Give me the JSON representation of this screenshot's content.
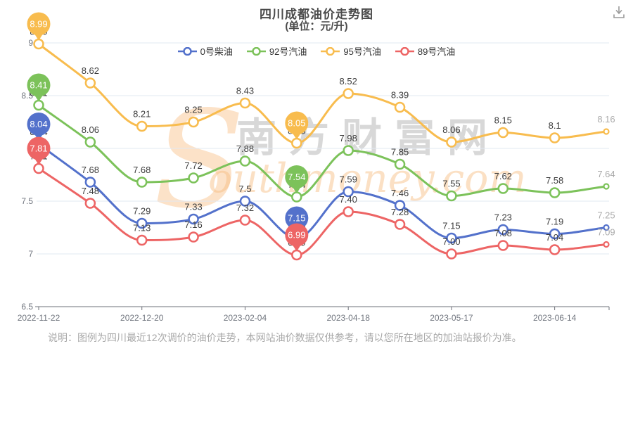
{
  "page": {
    "note": "说明：图例为四川最近12次调价的油价走势，本网站油价数据仅供参考，请以您所在地区的加油站报价为准。",
    "watermark": {
      "en_initial": "S",
      "cn": "南方财富网",
      "en_rest": "outhmoney.com"
    },
    "toolbox": {
      "save_icon": "download-icon"
    }
  },
  "chart_data": {
    "type": "line",
    "title": "四川成都油价走势图",
    "subtitle": "(单位：元/升)",
    "unit": "元/升",
    "legend_position": "top",
    "grid": true,
    "smooth": true,
    "n_points": 12,
    "x_tick_labels": [
      "2022-11-22",
      "2022-12-20",
      "2023-02-04",
      "2023-04-18",
      "2023-05-17",
      "2023-06-14"
    ],
    "x_tick_indices": [
      0,
      2,
      4,
      6,
      8,
      10
    ],
    "ylim": [
      6.5,
      9
    ],
    "y_ticks": [
      "9",
      "8.5",
      "8",
      "7.5",
      "7",
      "6.5"
    ],
    "series": [
      {
        "name": "0号柴油",
        "color": "#5371CB",
        "values": [
          8.04,
          7.68,
          7.29,
          7.33,
          7.5,
          7.15,
          7.59,
          7.46,
          7.15,
          7.23,
          7.19,
          7.25
        ],
        "labels": [
          "8.04",
          "7.68",
          "7.29",
          "7.33",
          "7.5",
          "7.15",
          "7.59",
          "7.46",
          "7.15",
          "7.23",
          "7.19",
          "7.25"
        ],
        "markpoints": [
          {
            "i": 0,
            "text": "8.04"
          },
          {
            "i": 5,
            "text": "7.15"
          }
        ]
      },
      {
        "name": "92号汽油",
        "color": "#7CC25A",
        "values": [
          8.41,
          8.06,
          7.68,
          7.72,
          7.88,
          7.54,
          7.98,
          7.85,
          7.55,
          7.62,
          7.58,
          7.64
        ],
        "labels": [
          "8.41",
          "8.06",
          "7.68",
          "7.72",
          "7.88",
          "7.54",
          "7.98",
          "7.85",
          "7.55",
          "7.62",
          "7.58",
          "7.64"
        ],
        "markpoints": [
          {
            "i": 0,
            "text": "8.41"
          },
          {
            "i": 5,
            "text": "7.54"
          }
        ]
      },
      {
        "name": "95号汽油",
        "color": "#F8BC4E",
        "values": [
          8.99,
          8.62,
          8.21,
          8.25,
          8.43,
          8.05,
          8.52,
          8.39,
          8.06,
          8.15,
          8.1,
          8.16
        ],
        "labels": [
          "8.99",
          "8.62",
          "8.21",
          "8.25",
          "8.43",
          "8.05",
          "8.52",
          "8.39",
          "8.06",
          "8.15",
          "8.1",
          "8.16"
        ],
        "markpoints": [
          {
            "i": 0,
            "text": "8.99"
          },
          {
            "i": 5,
            "text": "8.05"
          }
        ]
      },
      {
        "name": "89号汽油",
        "color": "#ED6565",
        "values": [
          7.81,
          7.48,
          7.13,
          7.16,
          7.32,
          6.99,
          7.4,
          7.28,
          7.0,
          7.08,
          7.04,
          7.09
        ],
        "labels": [
          "7.81",
          "7.48",
          "7.13",
          "7.16",
          "7.32",
          "6.99",
          "7.40",
          "7.28",
          "7.00",
          "7.08",
          "7.04",
          "7.09"
        ],
        "markpoints": [
          {
            "i": 0,
            "text": "7.81"
          },
          {
            "i": 5,
            "text": "6.99"
          }
        ]
      }
    ],
    "colors": {
      "grid_line": "#E2E8F2",
      "axis_line": "#6E7079",
      "axis_label": "#71767F",
      "data_label": "#3D3D3D",
      "last_point_label": "#ABABAB",
      "pin_text": "#FFFFFF"
    }
  }
}
